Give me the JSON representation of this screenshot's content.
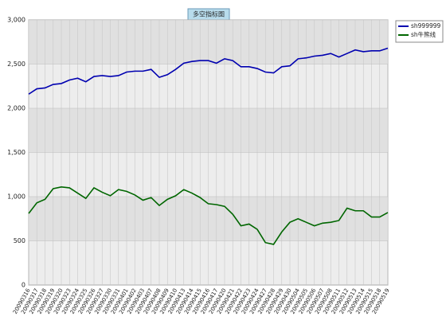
{
  "chart_data": {
    "type": "line",
    "title": "多空指标图",
    "categories": [
      "20090316",
      "20090317",
      "20090318",
      "20090319",
      "20090320",
      "20090323",
      "20090324",
      "20090325",
      "20090326",
      "20090327",
      "20090330",
      "20090331",
      "20090401",
      "20090402",
      "20090403",
      "20090407",
      "20090408",
      "20090409",
      "20090410",
      "20090413",
      "20090414",
      "20090415",
      "20090416",
      "20090417",
      "20090420",
      "20090421",
      "20090422",
      "20090423",
      "20090424",
      "20090427",
      "20090428",
      "20090429",
      "20090430",
      "20090504",
      "20090505",
      "20090506",
      "20090507",
      "20090508",
      "20090511",
      "20090512",
      "20090513",
      "20090514",
      "20090515",
      "20090518",
      "20090519"
    ],
    "series": [
      {
        "name": "sh999999",
        "color": "#0000b0",
        "values": [
          2160,
          2220,
          2230,
          2270,
          2280,
          2320,
          2340,
          2300,
          2360,
          2370,
          2360,
          2370,
          2410,
          2420,
          2420,
          2440,
          2350,
          2380,
          2440,
          2510,
          2530,
          2540,
          2540,
          2510,
          2560,
          2540,
          2470,
          2470,
          2450,
          2410,
          2400,
          2470,
          2480,
          2560,
          2570,
          2590,
          2600,
          2620,
          2580,
          2620,
          2660,
          2640,
          2650,
          2650,
          2680
        ]
      },
      {
        "name": "sh牛熊线",
        "color": "#006600",
        "values": [
          810,
          930,
          970,
          1090,
          1110,
          1100,
          1040,
          980,
          1100,
          1050,
          1010,
          1080,
          1060,
          1020,
          960,
          990,
          900,
          970,
          1010,
          1080,
          1040,
          990,
          920,
          910,
          890,
          800,
          670,
          690,
          630,
          480,
          460,
          600,
          710,
          750,
          710,
          670,
          700,
          710,
          730,
          870,
          840,
          840,
          770,
          770,
          820
        ]
      }
    ],
    "ylim": [
      0,
      3000
    ],
    "yticks": [
      0,
      500,
      {
        "value": 1000,
        "label": "1,000"
      },
      {
        "value": 1500,
        "label": "1,500"
      },
      {
        "value": 2000,
        "label": "2,000"
      },
      {
        "value": 2500,
        "label": "2,500"
      },
      {
        "value": 3000,
        "label": "3,000"
      }
    ],
    "grid": true
  }
}
